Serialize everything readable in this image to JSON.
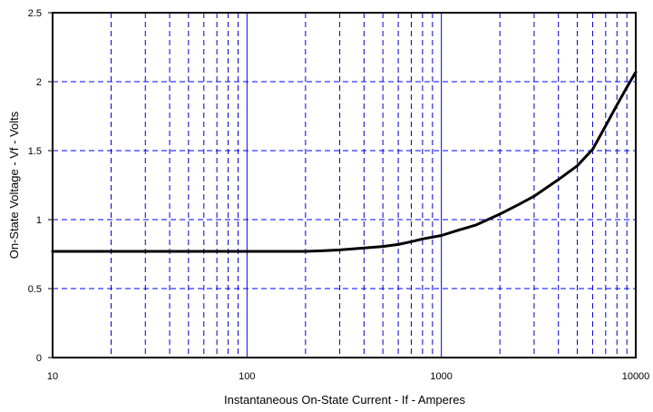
{
  "chart_data": {
    "type": "line",
    "xlabel": "Instantaneous On-State Current - If - Amperes",
    "ylabel": "On-State Voltage  - Vf  -  Volts",
    "xscale": "log",
    "xlim": [
      10,
      10000
    ],
    "ylim": [
      0,
      2.5
    ],
    "x_tick_labels": [
      "10",
      "100",
      "1000",
      "10000"
    ],
    "y_tick_labels": [
      "0",
      "0.5",
      "1",
      "1.5",
      "2",
      "2.5"
    ],
    "x_ticks": [
      10,
      100,
      1000,
      10000
    ],
    "y_ticks": [
      0,
      0.5,
      1,
      1.5,
      2,
      2.5
    ],
    "grid": true,
    "grid_major_color": "#0000ff",
    "grid_minor_color": "#0000cc",
    "series": [
      {
        "color": "#000000",
        "x": [
          10,
          20,
          50,
          100,
          150,
          200,
          250,
          300,
          400,
          500,
          600,
          700,
          800,
          1000,
          1200,
          1500,
          2000,
          2500,
          3000,
          4000,
          5000,
          6000,
          7000,
          8000,
          9000,
          10000
        ],
        "y": [
          0.77,
          0.77,
          0.77,
          0.77,
          0.77,
          0.77,
          0.775,
          0.78,
          0.795,
          0.805,
          0.82,
          0.84,
          0.86,
          0.885,
          0.92,
          0.96,
          1.04,
          1.11,
          1.17,
          1.29,
          1.39,
          1.51,
          1.68,
          1.83,
          1.96,
          2.07
        ]
      }
    ]
  }
}
